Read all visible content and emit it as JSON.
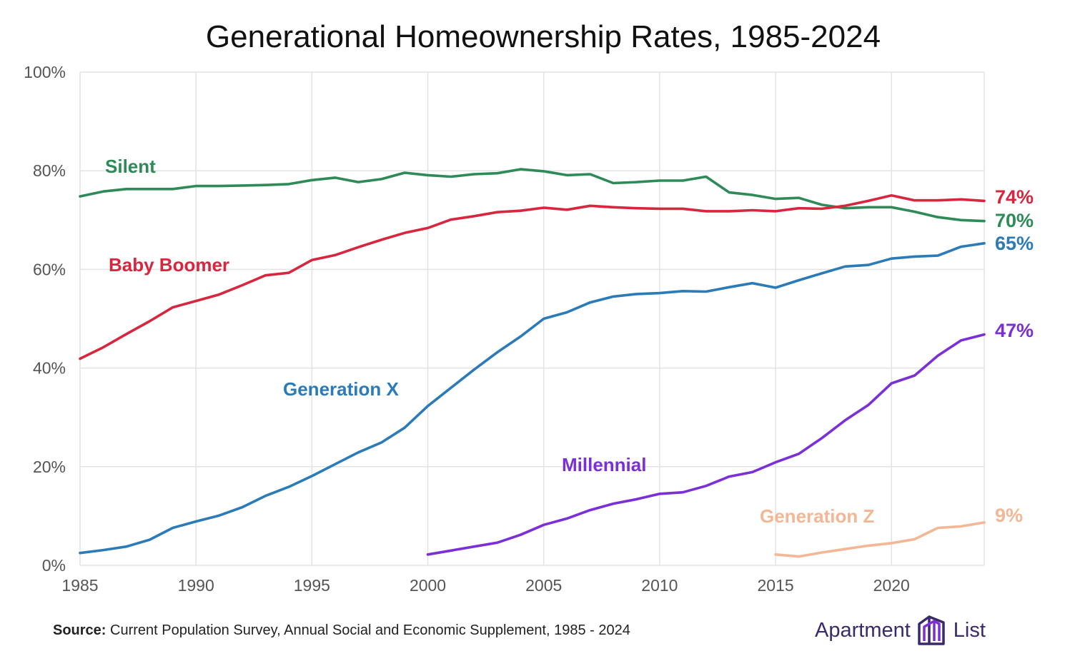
{
  "chart_data": {
    "type": "line",
    "title": "Generational Homeownership Rates, 1985-2024",
    "xlim": [
      1985,
      2024
    ],
    "ylim": [
      0,
      100
    ],
    "x_ticks": [
      "1985",
      "1990",
      "1995",
      "2000",
      "2005",
      "2010",
      "2015",
      "2020"
    ],
    "y_ticks": [
      "0%",
      "20%",
      "40%",
      "60%",
      "80%",
      "100%"
    ],
    "grid": true,
    "series": [
      {
        "name": "Silent",
        "color": "#2e8b57",
        "end_label": "70%",
        "x": [
          1985,
          1986,
          1987,
          1988,
          1989,
          1990,
          1991,
          1992,
          1993,
          1994,
          1995,
          1996,
          1997,
          1998,
          1999,
          2000,
          2001,
          2002,
          2003,
          2004,
          2005,
          2006,
          2007,
          2008,
          2009,
          2010,
          2011,
          2012,
          2013,
          2014,
          2015,
          2016,
          2017,
          2018,
          2019,
          2020,
          2021,
          2022,
          2023,
          2024
        ],
        "values": [
          74.8,
          75.8,
          76.3,
          76.3,
          76.3,
          76.9,
          76.9,
          77.0,
          77.1,
          77.3,
          78.1,
          78.6,
          77.7,
          78.3,
          79.6,
          79.1,
          78.8,
          79.3,
          79.5,
          80.3,
          79.9,
          79.1,
          79.3,
          77.5,
          77.7,
          78.0,
          78.0,
          78.8,
          75.6,
          75.1,
          74.3,
          74.5,
          73.1,
          72.4,
          72.6,
          72.6,
          71.7,
          70.6,
          70.0,
          69.8
        ]
      },
      {
        "name": "Baby Boomer",
        "color": "#d7263d",
        "end_label": "74%",
        "x": [
          1985,
          1986,
          1987,
          1988,
          1989,
          1990,
          1991,
          1992,
          1993,
          1994,
          1995,
          1996,
          1997,
          1998,
          1999,
          2000,
          2001,
          2002,
          2003,
          2004,
          2005,
          2006,
          2007,
          2008,
          2009,
          2010,
          2011,
          2012,
          2013,
          2014,
          2015,
          2016,
          2017,
          2018,
          2019,
          2020,
          2021,
          2022,
          2023,
          2024
        ],
        "values": [
          41.9,
          44.2,
          46.9,
          49.5,
          52.3,
          53.6,
          54.9,
          56.8,
          58.8,
          59.3,
          61.9,
          62.9,
          64.5,
          66.0,
          67.4,
          68.4,
          70.1,
          70.8,
          71.6,
          71.9,
          72.5,
          72.1,
          72.9,
          72.6,
          72.4,
          72.3,
          72.3,
          71.8,
          71.8,
          72.0,
          71.8,
          72.4,
          72.3,
          72.9,
          73.9,
          75.0,
          74.0,
          74.0,
          74.2,
          73.9
        ]
      },
      {
        "name": "Generation X",
        "color": "#2b7bb9",
        "end_label": "65%",
        "x": [
          1985,
          1986,
          1987,
          1988,
          1989,
          1990,
          1991,
          1992,
          1993,
          1994,
          1995,
          1996,
          1997,
          1998,
          1999,
          2000,
          2001,
          2002,
          2003,
          2004,
          2005,
          2006,
          2007,
          2008,
          2009,
          2010,
          2011,
          2012,
          2013,
          2014,
          2015,
          2016,
          2017,
          2018,
          2019,
          2020,
          2021,
          2022,
          2023,
          2024
        ],
        "values": [
          2.5,
          3.1,
          3.8,
          5.2,
          7.6,
          8.9,
          10.1,
          11.8,
          14.1,
          15.9,
          18.1,
          20.5,
          22.9,
          24.9,
          27.9,
          32.3,
          36.0,
          39.7,
          43.2,
          46.4,
          50.0,
          51.3,
          53.3,
          54.5,
          55.0,
          55.2,
          55.6,
          55.5,
          56.4,
          57.2,
          56.3,
          57.8,
          59.2,
          60.6,
          60.9,
          62.2,
          62.6,
          62.8,
          64.6,
          65.3
        ]
      },
      {
        "name": "Millennial",
        "color": "#7b2fd6",
        "end_label": "47%",
        "x": [
          2000,
          2001,
          2002,
          2003,
          2004,
          2005,
          2006,
          2007,
          2008,
          2009,
          2010,
          2011,
          2012,
          2013,
          2014,
          2015,
          2016,
          2017,
          2018,
          2019,
          2020,
          2021,
          2022,
          2023,
          2024
        ],
        "values": [
          2.2,
          3.0,
          3.8,
          4.6,
          6.2,
          8.2,
          9.5,
          11.2,
          12.5,
          13.4,
          14.5,
          14.8,
          16.1,
          18.0,
          18.9,
          20.9,
          22.6,
          25.8,
          29.4,
          32.5,
          36.9,
          38.5,
          42.5,
          45.6,
          46.8
        ]
      },
      {
        "name": "Generation Z",
        "color": "#f4b796",
        "end_label": "9%",
        "x": [
          2015,
          2016,
          2017,
          2018,
          2019,
          2020,
          2021,
          2022,
          2023,
          2024
        ],
        "values": [
          2.2,
          1.8,
          2.6,
          3.3,
          4.0,
          4.5,
          5.3,
          7.6,
          7.9,
          8.7
        ]
      }
    ]
  },
  "source": {
    "label": "Source:",
    "text": " Current Population Survey, Annual Social and Economic Supplement, 1985 - 2024"
  },
  "brand": {
    "left": "Apartment",
    "right": "List",
    "color": "#3b2a6b"
  }
}
